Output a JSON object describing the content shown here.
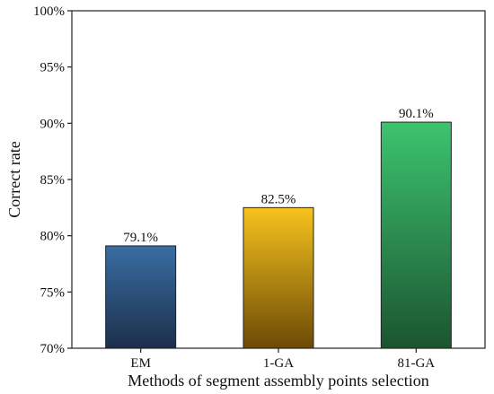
{
  "chart_data": {
    "type": "bar",
    "categories": [
      "EM",
      "1-GA",
      "81-GA"
    ],
    "values": [
      79.1,
      82.5,
      90.1
    ],
    "data_labels": [
      "79.1%",
      "82.5%",
      "90.1%"
    ],
    "title": "",
    "xlabel": "Methods of segment assembly points selection",
    "ylabel": "Correct rate",
    "ylim": [
      70,
      100
    ],
    "yticks": [
      70,
      75,
      80,
      85,
      90,
      95,
      100
    ],
    "ytick_labels": [
      "70%",
      "75%",
      "80%",
      "85%",
      "90%",
      "95%",
      "100%"
    ],
    "grid": false,
    "legend": "none",
    "bar_colors": [
      {
        "top": "#3a6da3",
        "bottom": "#1c2f4a"
      },
      {
        "top": "#f7c31e",
        "bottom": "#6b4a06"
      },
      {
        "top": "#3cc46f",
        "bottom": "#1b5530"
      }
    ],
    "bar_edge_color": "#222222"
  }
}
